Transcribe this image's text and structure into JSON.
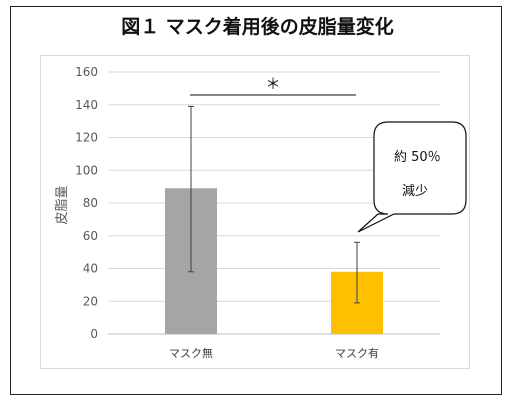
{
  "title": "図１ マスク着用後の皮脂量変化",
  "chart_data": {
    "type": "bar",
    "categories": [
      "マスク無",
      "マスク有"
    ],
    "values": [
      89,
      38
    ],
    "error_high": [
      139,
      56
    ],
    "error_low": [
      38,
      19
    ],
    "bar_colors": [
      "#a5a5a5",
      "#ffc000"
    ],
    "ylabel": "皮脂量",
    "ylim": [
      0,
      160
    ],
    "yticks": [
      0,
      20,
      40,
      60,
      80,
      100,
      120,
      140,
      160
    ],
    "grid": true,
    "significance_marker": "＊"
  },
  "callout": {
    "line1": "約 50％",
    "line2": "減少"
  }
}
